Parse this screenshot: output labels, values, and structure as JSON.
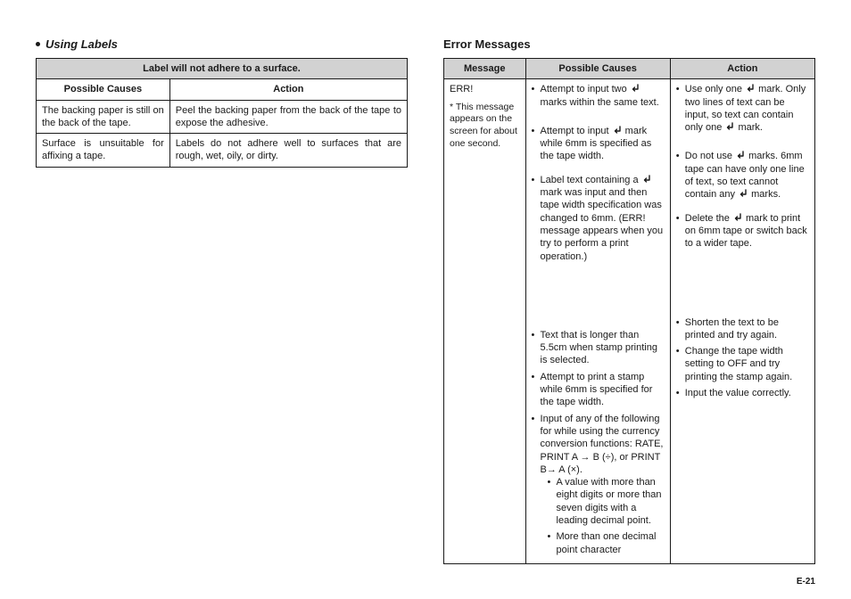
{
  "page_number": "E-21",
  "left": {
    "heading": "Using Labels",
    "table": {
      "caption": "Label will not adhere to a surface.",
      "headers": [
        "Possible Causes",
        "Action"
      ],
      "rows": [
        [
          "The backing paper is still on the back of the tape.",
          "Peel the backing paper from the back of the tape to expose the adhesive."
        ],
        [
          "Surface is unsuitable for affixing a tape.",
          "Labels do not adhere well to surfaces that are rough, wet, oily, or dirty."
        ]
      ],
      "col_widths": [
        "36%",
        "64%"
      ]
    }
  },
  "right": {
    "heading": "Error Messages",
    "table": {
      "headers": [
        "Message",
        "Possible Causes",
        "Action"
      ],
      "col_widths": [
        "22%",
        "39%",
        "39%"
      ],
      "message": {
        "primary": "ERR!",
        "note_prefix": "* ",
        "note": "This message appears on the screen for about one second."
      },
      "causes": [
        {
          "pre": "Attempt to input two ",
          "ret": true,
          "post": " marks within the same text."
        },
        {
          "pre": "Attempt to input ",
          "ret": true,
          "post": " mark while 6mm is specified as the tape width."
        },
        {
          "pre": "Label text containing a ",
          "ret": true,
          "post": " mark was input and then tape width specification was changed to 6mm. (ERR! message appears when you try to perform a print operation.)"
        },
        {
          "pre": "Text that is longer than 5.5cm when stamp printing is selected.",
          "ret": false,
          "post": ""
        },
        {
          "pre": "Attempt to print a stamp while 6mm is specified for the tape width.",
          "ret": false,
          "post": ""
        },
        {
          "pre": "Input of any of the following for while using the currency conversion functions: RATE, PRINT A → B (÷), or PRINT B→ A (×).",
          "ret": false,
          "post": ""
        }
      ],
      "causes_sub": [
        "A value with more than eight digits or more than seven digits with a leading decimal point.",
        "More than one decimal point character"
      ],
      "actions": [
        {
          "pre": "Use only one ",
          "ret": true,
          "post": " mark. Only two lines of text can be input, so text can contain only one ",
          "ret2": true,
          "post2": " mark."
        },
        {
          "pre": "Do not use ",
          "ret": true,
          "post": " marks. 6mm tape can have only one line of text, so text cannot contain any ",
          "ret2": true,
          "post2": " marks."
        },
        {
          "pre": "Delete the ",
          "ret": true,
          "post": " mark to print on 6mm tape or switch back to a wider tape."
        },
        {
          "pre": "Shorten the text to be printed and try again.",
          "ret": false,
          "post": ""
        },
        {
          "pre": "Change the tape width setting to OFF and try printing the stamp again.",
          "ret": false,
          "post": ""
        },
        {
          "pre": "Input the value correctly.",
          "ret": false,
          "post": ""
        }
      ],
      "spacer_heights": [
        "0px",
        "18px",
        "12px",
        "74px",
        "2px",
        "0px"
      ]
    }
  },
  "icons": {
    "return": "↵"
  },
  "colors": {
    "header_bg": "#d2d2d2",
    "border": "#1a1a1a",
    "text": "#1a1a1a"
  }
}
